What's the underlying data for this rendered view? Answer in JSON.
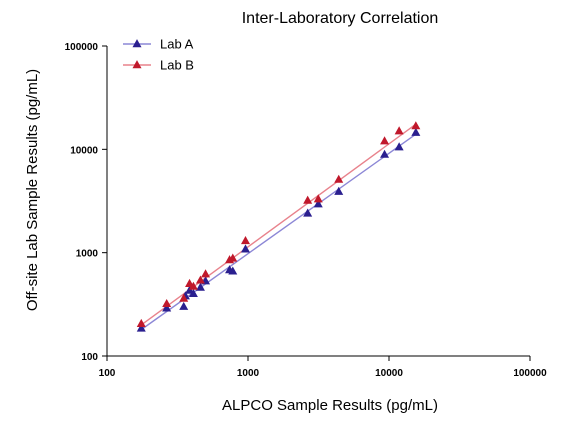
{
  "chart_data": {
    "type": "scatter",
    "title": "Inter-Laboratory Correlation",
    "xlabel": "ALPCO Sample Results (pg/mL)",
    "ylabel": "Off-site Lab Sample Results (pg/mL)",
    "xscale": "log",
    "yscale": "log",
    "xlim": [
      100,
      100000
    ],
    "ylim": [
      100,
      100000
    ],
    "x_ticks": [
      "100",
      "1000",
      "10000",
      "100000"
    ],
    "y_ticks": [
      "100",
      "1000",
      "10000",
      "100000"
    ],
    "grid": false,
    "legend_position": "top-left",
    "series": [
      {
        "name": "Lab A",
        "color": "#2a1f8f",
        "line_color": "#8c87d6",
        "marker": "triangle",
        "points": [
          [
            175,
            185
          ],
          [
            265,
            290
          ],
          [
            350,
            300
          ],
          [
            360,
            380
          ],
          [
            385,
            430
          ],
          [
            410,
            400
          ],
          [
            460,
            460
          ],
          [
            500,
            530
          ],
          [
            740,
            680
          ],
          [
            780,
            660
          ],
          [
            960,
            1080
          ],
          [
            2650,
            2400
          ],
          [
            3150,
            2950
          ],
          [
            4400,
            3900
          ],
          [
            9300,
            8900
          ],
          [
            11800,
            10500
          ],
          [
            15500,
            14500
          ]
        ],
        "fit": [
          [
            175,
            180
          ],
          [
            15500,
            14000
          ]
        ]
      },
      {
        "name": "Lab B",
        "color": "#c0182b",
        "line_color": "#e8828c",
        "marker": "triangle",
        "points": [
          [
            175,
            205
          ],
          [
            265,
            320
          ],
          [
            350,
            360
          ],
          [
            385,
            500
          ],
          [
            410,
            470
          ],
          [
            460,
            540
          ],
          [
            500,
            620
          ],
          [
            740,
            850
          ],
          [
            780,
            880
          ],
          [
            960,
            1300
          ],
          [
            2650,
            3200
          ],
          [
            3150,
            3300
          ],
          [
            4400,
            5100
          ],
          [
            9300,
            12000
          ],
          [
            11800,
            15000
          ],
          [
            15500,
            16800
          ]
        ],
        "fit": [
          [
            175,
            200
          ],
          [
            15500,
            17500
          ]
        ]
      }
    ]
  }
}
